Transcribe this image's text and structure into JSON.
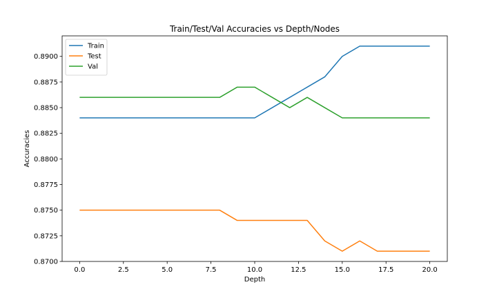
{
  "chart_data": {
    "type": "line",
    "title": "Train/Test/Val Accuracies vs Depth/Nodes",
    "xlabel": "Depth",
    "ylabel": "Accuracies",
    "xlim": [
      -1,
      21
    ],
    "ylim": [
      0.87,
      0.892
    ],
    "xticks": [
      0.0,
      2.5,
      5.0,
      7.5,
      10.0,
      12.5,
      15.0,
      17.5,
      20.0
    ],
    "xtick_labels": [
      "0.0",
      "2.5",
      "5.0",
      "7.5",
      "10.0",
      "12.5",
      "15.0",
      "17.5",
      "20.0"
    ],
    "yticks": [
      0.87,
      0.8725,
      0.875,
      0.8775,
      0.88,
      0.8825,
      0.885,
      0.8875,
      0.89
    ],
    "ytick_labels": [
      "0.8700",
      "0.8725",
      "0.8750",
      "0.8775",
      "0.8800",
      "0.8825",
      "0.8850",
      "0.8875",
      "0.8900"
    ],
    "grid": false,
    "legend_position": "top-left",
    "x": [
      0,
      1,
      2,
      3,
      4,
      5,
      6,
      7,
      8,
      9,
      10,
      11,
      12,
      13,
      14,
      15,
      16,
      17,
      18,
      19,
      20
    ],
    "series": [
      {
        "name": "Train",
        "color": "#1f77b4",
        "values": [
          0.884,
          0.884,
          0.884,
          0.884,
          0.884,
          0.884,
          0.884,
          0.884,
          0.884,
          0.884,
          0.884,
          0.885,
          0.886,
          0.887,
          0.888,
          0.89,
          0.891,
          0.891,
          0.891,
          0.891,
          0.891
        ]
      },
      {
        "name": "Test",
        "color": "#ff7f0e",
        "values": [
          0.875,
          0.875,
          0.875,
          0.875,
          0.875,
          0.875,
          0.875,
          0.875,
          0.875,
          0.874,
          0.874,
          0.874,
          0.874,
          0.874,
          0.872,
          0.871,
          0.872,
          0.871,
          0.871,
          0.871,
          0.871
        ]
      },
      {
        "name": "Val",
        "color": "#2ca02c",
        "values": [
          0.886,
          0.886,
          0.886,
          0.886,
          0.886,
          0.886,
          0.886,
          0.886,
          0.886,
          0.887,
          0.887,
          0.886,
          0.885,
          0.886,
          0.885,
          0.884,
          0.884,
          0.884,
          0.884,
          0.884,
          0.884
        ]
      }
    ]
  }
}
